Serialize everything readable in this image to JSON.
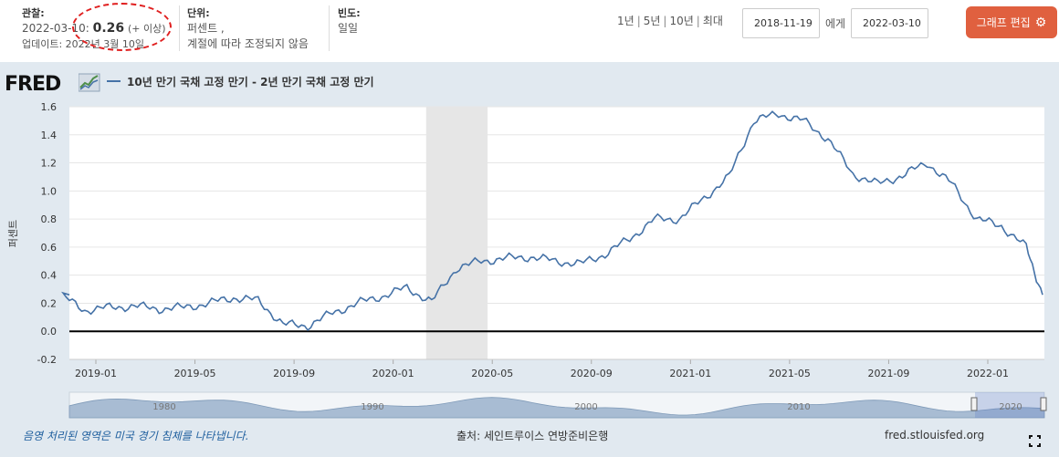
{
  "header": {
    "observation_label": "관찰:",
    "observation_date": "2022-03-10:",
    "observation_value": "0.26",
    "observation_note": "(+ 이상)",
    "updated": "업데이트: 2022년 3월 10일",
    "units_label": "단위:",
    "units_line1": "퍼센트 ,",
    "units_line2": "계절에 따라 조정되지 않음",
    "freq_label": "빈도:",
    "freq_value": "일일",
    "ranges": [
      "1년",
      "5년",
      "10년",
      "최대"
    ],
    "date_from": "2018-11-19",
    "to_label": "에게",
    "date_to": "2022-03-10",
    "edit_button": "그래프 편집"
  },
  "logo": "FRED",
  "legend": "10년 만기 국채 고정 만기 - 2년 만기 국채 고정 만기",
  "footer": {
    "recession_note": "음영 처리된 영역은 미국 경기 침체를 나타냅니다.",
    "source": "출처: 세인트루이스 연방준비은행",
    "site": "fred.stlouisfed.org"
  },
  "colors": {
    "series": "#4572a7",
    "panel_bg": "#e1e9f0",
    "recession": "#e6e6e6",
    "edit_button": "#e0603f"
  },
  "chart_data": {
    "type": "line",
    "ylabel": "퍼센트",
    "ylim": [
      -0.2,
      1.6
    ],
    "yticks": [
      "1.6",
      "1.4",
      "1.2",
      "1.0",
      "0.8",
      "0.6",
      "0.4",
      "0.2",
      "0.0",
      "-0.2"
    ],
    "xticks": [
      "2019-01",
      "2019-05",
      "2019-09",
      "2020-01",
      "2020-05",
      "2020-09",
      "2021-01",
      "2021-05",
      "2021-09",
      "2022-01"
    ],
    "navigator_ticks": [
      "1980",
      "1990",
      "2000",
      "2010",
      "2020"
    ],
    "recession": [
      "2020-02",
      "2020-04"
    ],
    "series": [
      {
        "name": "10년 만기 국채 고정 만기 - 2년 만기 국채 고정 만기",
        "x": [
          "2018-11",
          "2018-12",
          "2019-01",
          "2019-02",
          "2019-03",
          "2019-04",
          "2019-05",
          "2019-06",
          "2019-07",
          "2019-08",
          "2019-09",
          "2019-10",
          "2019-11",
          "2019-12",
          "2020-01",
          "2020-02",
          "2020-03",
          "2020-04",
          "2020-05",
          "2020-06",
          "2020-07",
          "2020-08",
          "2020-09",
          "2020-10",
          "2020-11",
          "2020-12",
          "2021-01",
          "2021-02",
          "2021-03",
          "2021-04",
          "2021-05",
          "2021-06",
          "2021-07",
          "2021-08",
          "2021-09",
          "2021-10",
          "2021-11",
          "2021-12",
          "2022-01",
          "2022-02",
          "2022-03"
        ],
        "values": [
          0.26,
          0.15,
          0.17,
          0.18,
          0.16,
          0.17,
          0.2,
          0.24,
          0.22,
          0.05,
          0.04,
          0.13,
          0.2,
          0.25,
          0.31,
          0.21,
          0.45,
          0.5,
          0.52,
          0.53,
          0.5,
          0.48,
          0.55,
          0.66,
          0.8,
          0.8,
          0.95,
          1.1,
          1.5,
          1.55,
          1.5,
          1.37,
          1.12,
          1.05,
          1.11,
          1.2,
          1.05,
          0.8,
          0.75,
          0.6,
          0.26
        ]
      }
    ]
  }
}
